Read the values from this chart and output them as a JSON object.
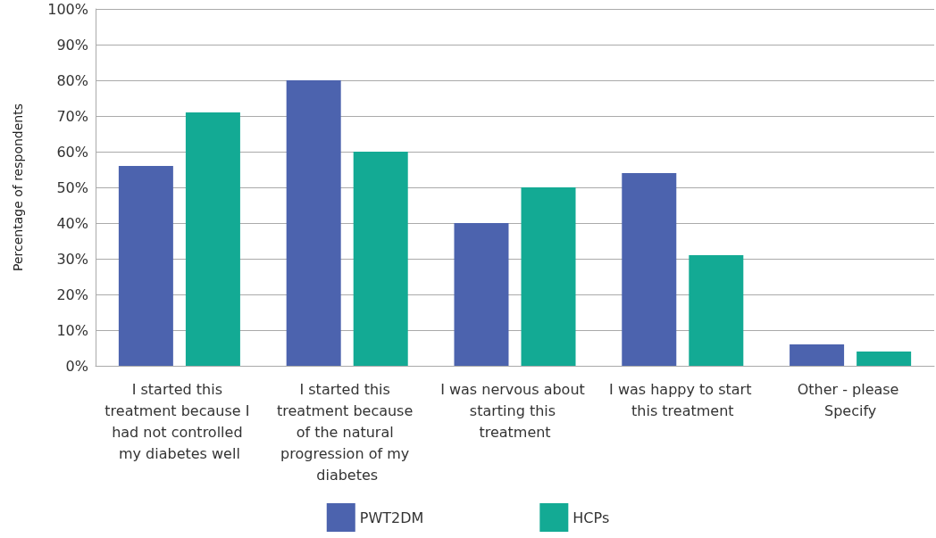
{
  "chart_data": {
    "type": "bar",
    "ylabel": "Percentage of respondents",
    "categories": [
      "I started this treatment because I had not controlled my diabetes well",
      "I started this treatment because of the natural progression of my diabetes",
      "I was nervous about starting this treatment",
      "I was happy to start this treatment",
      "Other - please Specify"
    ],
    "series": [
      {
        "name": "PWT2DM",
        "color": "#4c63ae",
        "values": [
          56,
          80,
          40,
          54,
          6
        ]
      },
      {
        "name": "HCPs",
        "color": "#13aa94",
        "values": [
          71,
          60,
          50,
          31,
          4
        ]
      }
    ],
    "ylim": [
      0,
      100
    ],
    "yticks": [
      {
        "value": 0,
        "label": "0%"
      },
      {
        "value": 10,
        "label": "10%"
      },
      {
        "value": 20,
        "label": "20%"
      },
      {
        "value": 30,
        "label": "30%"
      },
      {
        "value": 40,
        "label": "40%"
      },
      {
        "value": 50,
        "label": "50%"
      },
      {
        "value": 60,
        "label": "60%"
      },
      {
        "value": 70,
        "label": "70%"
      },
      {
        "value": 80,
        "label": "80%"
      },
      {
        "value": 90,
        "label": "90%"
      },
      {
        "value": 100,
        "label": "100%"
      }
    ],
    "grid": "y",
    "legend": "bottom"
  }
}
